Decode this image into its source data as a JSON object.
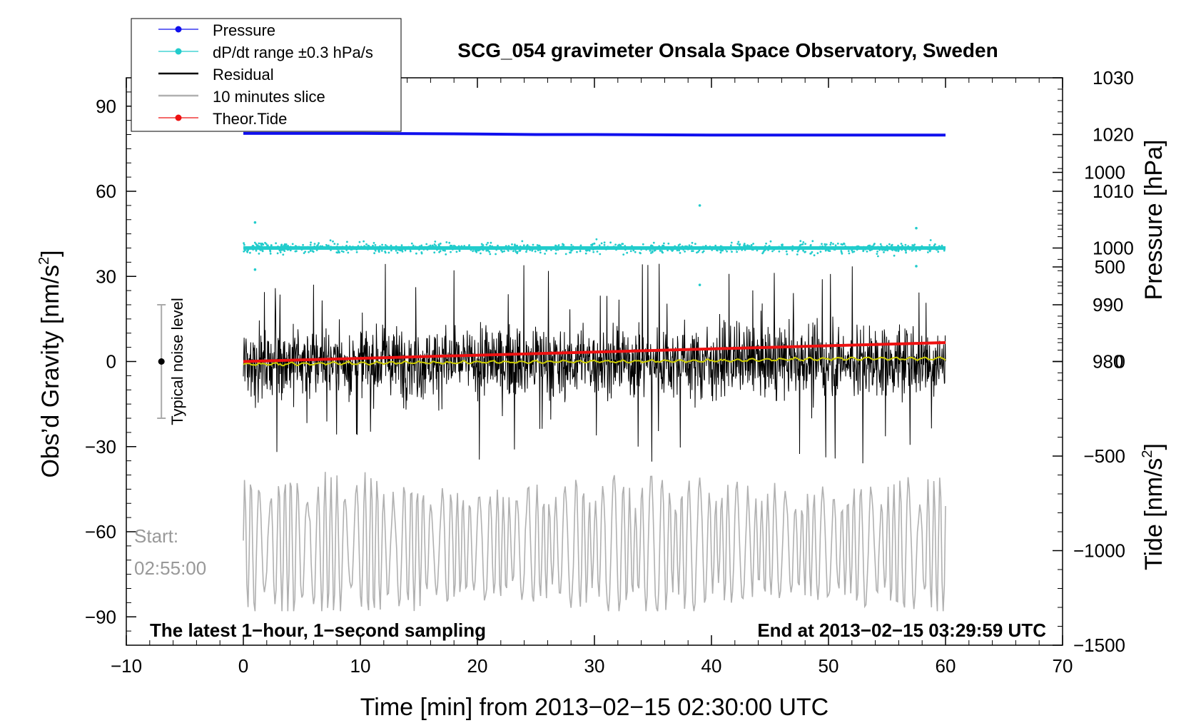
{
  "chart_data": {
    "type": "line",
    "title": "SCG_054 gravimeter Onsala Space Observatory, Sweden",
    "xlabel": "Time [min] from 2013−02−15 02:30:00 UTC",
    "ylabel": "Obs’d Gravity [nm/s²]",
    "ylabel_base": "Obs’d Gravity [nm/s",
    "ylabel_sup": "2",
    "ylabel_close": "]",
    "y2label": "Pressure [hPa]",
    "y3label": "Tide [nm/s²]",
    "y3label_base": "Tide [nm/s",
    "y3label_sup": "2",
    "y3label_close": "]",
    "xlim": [
      -10,
      70
    ],
    "ylim": [
      -100,
      100
    ],
    "y2lim": [
      930,
      1030
    ],
    "y3lim": [
      -1500,
      1500
    ],
    "xticks": [
      -10,
      0,
      10,
      20,
      30,
      40,
      50,
      60,
      70
    ],
    "xtick_labels": [
      "−10",
      "0",
      "10",
      "20",
      "30",
      "40",
      "50",
      "60",
      "70"
    ],
    "yticks": [
      90,
      60,
      30,
      0,
      -30,
      -60,
      -90
    ],
    "ytick_labels": [
      "90",
      "60",
      "30",
      "0",
      "−30",
      "−60",
      "−90"
    ],
    "y2ticks": [
      1030,
      1020,
      1010,
      1000,
      990,
      980
    ],
    "y2tick_labels": [
      "1030",
      "1020",
      "1010",
      "1000",
      "990",
      "980"
    ],
    "y3ticks": [
      1000,
      500,
      0,
      -500,
      -1000,
      -1500
    ],
    "y3tick_labels": [
      "1000",
      "500",
      "0",
      "−500",
      "−1000",
      "−1500"
    ],
    "legend": [
      {
        "label": "Pressure",
        "color": "#1010ee",
        "marker": true
      },
      {
        "label": "dP/dt range ±0.3 hPa/s",
        "color": "#22cccc",
        "marker": true
      },
      {
        "label": "Residual",
        "color": "#000000",
        "marker": false
      },
      {
        "label": "10 minutes slice",
        "color": "#b0b0b0",
        "marker": false
      },
      {
        "label": "Theor.Tide",
        "color": "#ee1111",
        "marker": true
      }
    ],
    "series": [
      {
        "name": "Pressure",
        "axis": "pressure",
        "color": "#1010ee",
        "x": [
          0,
          10,
          20,
          25,
          30,
          40,
          50,
          60
        ],
        "values": [
          1020.2,
          1020.2,
          1020.1,
          1020.0,
          1020.0,
          1019.9,
          1019.9,
          1019.9
        ]
      },
      {
        "name": "dP/dt range ±0.3 hPa/s",
        "axis": "pressure",
        "color": "#22cccc",
        "x": [
          0,
          60
        ],
        "values": [
          1000,
          1000
        ],
        "scatter_spread": 1.5,
        "outliers": [
          {
            "x": 1,
            "value": 1004.5
          },
          {
            "x": 1,
            "value": 996.2
          },
          {
            "x": 39,
            "value": 1007.5
          },
          {
            "x": 39,
            "value": 993.5
          },
          {
            "x": 57.5,
            "value": 1003.5
          },
          {
            "x": 57.5,
            "value": 996.8
          }
        ]
      },
      {
        "name": "Residual",
        "axis": "gravity",
        "color": "#000000",
        "x": [
          0,
          60
        ],
        "values": [
          0,
          0
        ],
        "noise_amplitude": 12,
        "spike_range": [
          -37,
          38
        ]
      },
      {
        "name": "Smoothed residual",
        "axis": "gravity",
        "color": "#cccc00",
        "x": [
          0,
          20,
          40,
          50,
          60
        ],
        "values": [
          -1,
          -0.2,
          0.2,
          1,
          1
        ]
      },
      {
        "name": "10 minutes slice",
        "axis": "gravity",
        "color": "#b0b0b0",
        "x": [
          0,
          60
        ],
        "values": [
          -65,
          -65
        ],
        "oscillation_range": [
          -88,
          -35
        ]
      },
      {
        "name": "Theor.Tide",
        "axis": "tide",
        "color": "#ee1111",
        "x": [
          0,
          60
        ],
        "values": [
          0,
          100
        ]
      }
    ],
    "noise_bar": {
      "label": "Typical noise level",
      "x": -7,
      "center": 0,
      "low": -20,
      "high": 20
    },
    "annotations": {
      "start_label": "Start:",
      "start_time": "02:55:00",
      "bottom_left": "The latest 1−hour, 1−second sampling",
      "bottom_right": "End at 2013−02−15 03:29:59 UTC"
    },
    "colors": {
      "start_text": "#999999",
      "noise_bar": "#aaaaaa"
    }
  }
}
